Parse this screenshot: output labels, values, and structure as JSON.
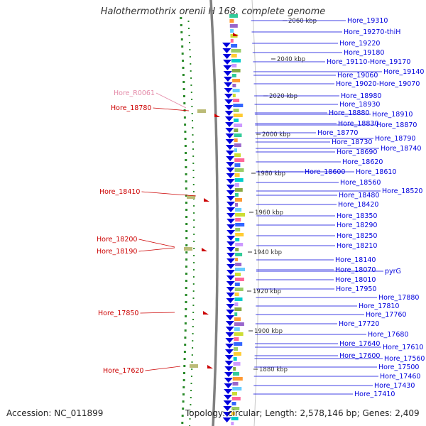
{
  "header": {
    "title": "Halothermothrix orenii H 168, complete genome"
  },
  "footer": {
    "accession": "Accession: NC_011899",
    "topology": "Topology: circular; Length: 2,578,146 bp; Genes: 2,409"
  },
  "colors": {
    "forward": "#0000dd",
    "reverse": "#cc0000",
    "rna": "#e48aa8",
    "backbone": "#808080"
  },
  "scale_labels": [
    "2060 kbp",
    "2040 kbp",
    "2020 kbp",
    "2000 kbp",
    "1980 kbp",
    "1960 kbp",
    "1940 kbp",
    "1920 kbp",
    "1900 kbp",
    "1880 kbp"
  ],
  "right_labels": [
    "Hore_19310",
    "Hore_19270-thiH",
    "Hore_19220",
    "Hore_19180",
    "Hore_19110-Hore_19170",
    "Hore_19140",
    "Hore_19060",
    "Hore_19020-Hore_19070",
    "Hore_18980",
    "Hore_18930",
    "Hore_18880",
    "Hore_18910",
    "Hore_18830",
    "Hore_18870",
    "Hore_18770",
    "Hore_18790",
    "Hore_18730",
    "Hore_18740",
    "Hore_18690",
    "Hore_18620",
    "Hore_18600",
    "Hore_18610",
    "Hore_18560",
    "Hore_18520",
    "Hore_18480",
    "Hore_18420",
    "Hore_18350",
    "Hore_18290",
    "Hore_18250",
    "Hore_18210",
    "Hore_18140",
    "Hore_18070",
    "pyrG",
    "Hore_18010",
    "Hore_17950",
    "Hore_17880",
    "Hore_17810",
    "Hore_17760",
    "Hore_17720",
    "Hore_17680",
    "Hore_17640",
    "Hore_17610",
    "Hore_17600",
    "Hore_17560",
    "Hore_17500",
    "Hore_17460",
    "Hore_17430",
    "Hore_17410"
  ],
  "left_labels": [
    {
      "text": "Hore_R0061",
      "kind": "rna"
    },
    {
      "text": "Hore_18780",
      "kind": "reverse"
    },
    {
      "text": "Hore_18410",
      "kind": "reverse"
    },
    {
      "text": "Hore_18200",
      "kind": "reverse"
    },
    {
      "text": "Hore_18190",
      "kind": "reverse"
    },
    {
      "text": "Hore_17850",
      "kind": "reverse"
    },
    {
      "text": "Hore_17620",
      "kind": "reverse"
    }
  ]
}
